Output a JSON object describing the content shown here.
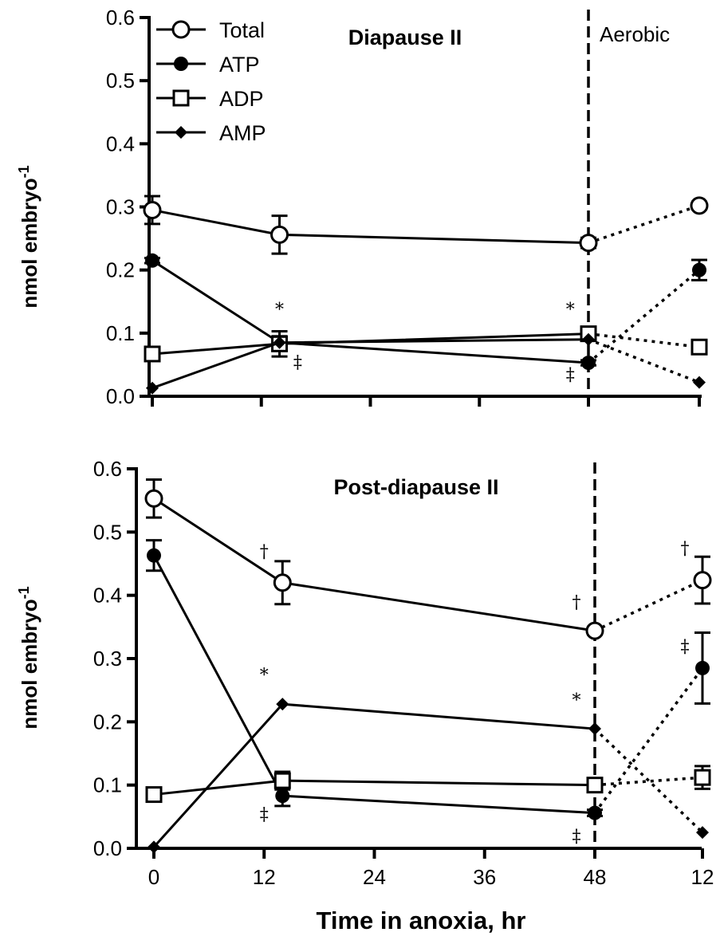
{
  "chart_data": [
    {
      "type": "line",
      "title": "Diapause II",
      "ylabel": "nmol embryo",
      "ylabel_sup": "-1",
      "ylim": [
        0,
        0.6
      ],
      "yticks": [
        "0.0",
        "0.1",
        "0.2",
        "0.3",
        "0.4",
        "0.5",
        "0.6"
      ],
      "x": [
        0,
        14,
        48,
        "12 (aerobic)"
      ],
      "aerobic_label": "Aerobic",
      "series": [
        {
          "name": "Total",
          "marker": "open-circle",
          "values": [
            0.295,
            0.256,
            0.243,
            0.302
          ],
          "errors": [
            0.022,
            0.03,
            0.008,
            0.006
          ]
        },
        {
          "name": "ATP",
          "marker": "filled-circle",
          "values": [
            0.215,
            0.085,
            0.053,
            0.2
          ],
          "errors": [
            0.004,
            0.01,
            0.004,
            0.016
          ]
        },
        {
          "name": "ADP",
          "marker": "open-square",
          "values": [
            0.067,
            0.083,
            0.099,
            0.078
          ],
          "errors": [
            0.004,
            0.02,
            0.006,
            0.008
          ]
        },
        {
          "name": "AMP",
          "marker": "filled-diamond",
          "values": [
            0.013,
            0.085,
            0.09,
            0.022
          ],
          "errors": [
            0,
            0,
            0,
            0
          ]
        }
      ],
      "annotations": [
        {
          "text": "*",
          "x": 14,
          "y": 0.128
        },
        {
          "text": "‡",
          "x": 16,
          "y": 0.045
        },
        {
          "text": "*",
          "x": 46,
          "y": 0.128
        },
        {
          "text": "‡",
          "x": 46,
          "y": 0.025
        }
      ],
      "legend": {
        "position": "top-left",
        "entries": [
          "Total",
          "ATP",
          "ADP",
          "AMP"
        ]
      }
    },
    {
      "type": "line",
      "title": "Post-diapause II",
      "ylabel": "nmol embryo",
      "ylabel_sup": "-1",
      "ylim": [
        0,
        0.6
      ],
      "yticks": [
        "0.0",
        "0.1",
        "0.2",
        "0.3",
        "0.4",
        "0.5",
        "0.6"
      ],
      "x": [
        0,
        14,
        48,
        "12 (aerobic)"
      ],
      "xticks": [
        "0",
        "12",
        "24",
        "36",
        "48",
        "12"
      ],
      "xlabel": "Time in anoxia, hr",
      "series": [
        {
          "name": "Total",
          "marker": "open-circle",
          "values": [
            0.553,
            0.42,
            0.344,
            0.424
          ],
          "errors": [
            0.03,
            0.034,
            0.006,
            0.037
          ]
        },
        {
          "name": "ATP",
          "marker": "filled-circle",
          "values": [
            0.463,
            0.083,
            0.056,
            0.285
          ],
          "errors": [
            0.024,
            0.016,
            0.005,
            0.056
          ]
        },
        {
          "name": "ADP",
          "marker": "open-square",
          "values": [
            0.085,
            0.107,
            0.1,
            0.112
          ],
          "errors": [
            0.004,
            0.014,
            0.006,
            0.018
          ]
        },
        {
          "name": "AMP",
          "marker": "filled-diamond",
          "values": [
            0.002,
            0.228,
            0.189,
            0.025
          ],
          "errors": [
            0,
            0,
            0,
            0
          ]
        }
      ],
      "annotations": [
        {
          "text": "†",
          "x": 12,
          "y": 0.46
        },
        {
          "text": "*",
          "x": 12,
          "y": 0.265
        },
        {
          "text": "‡",
          "x": 12,
          "y": 0.045
        },
        {
          "text": "†",
          "x": 46,
          "y": 0.38
        },
        {
          "text": "*",
          "x": 46,
          "y": 0.225
        },
        {
          "text": "‡",
          "x": 46,
          "y": 0.01
        },
        {
          "text": "†",
          "x": "12a",
          "y": 0.465
        },
        {
          "text": "‡",
          "x": "12a",
          "y": 0.31
        }
      ]
    }
  ],
  "colors": {
    "ink": "#000000",
    "background": "#ffffff"
  }
}
